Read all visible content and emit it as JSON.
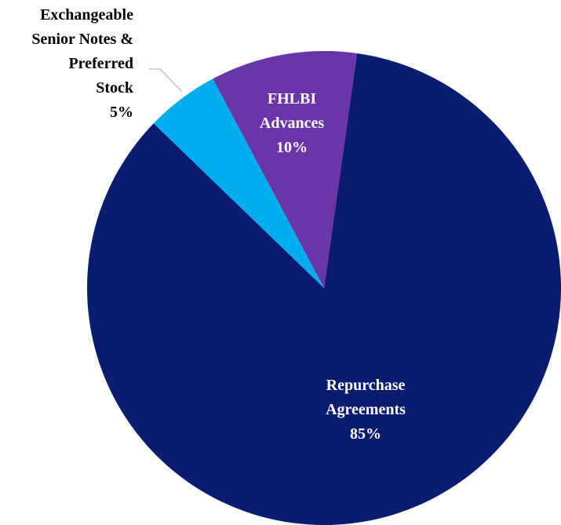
{
  "chart_data": {
    "type": "pie",
    "categories": [
      "Repurchase Agreements",
      "Exchangeable Senior Notes & Preferred Stock",
      "FHLBI Advances"
    ],
    "values": [
      85,
      5,
      10
    ],
    "value_labels": [
      "85%",
      "5%",
      "10%"
    ],
    "colors": [
      "#0a1c70",
      "#00aeef",
      "#6a35a8"
    ]
  }
}
